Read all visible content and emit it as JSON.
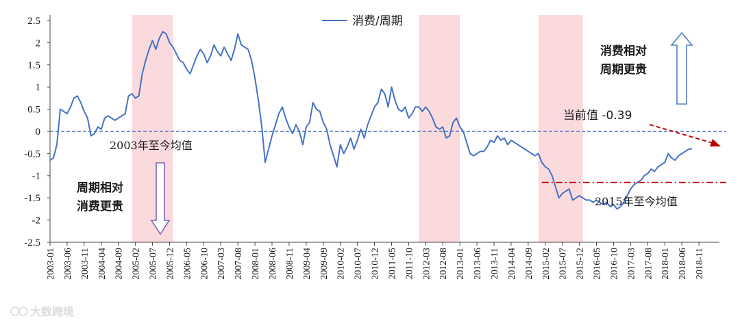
{
  "chart_data": {
    "type": "line",
    "title": "",
    "xlabel": "",
    "ylabel": "",
    "ylim": [
      -2.5,
      2.5
    ],
    "yticks": [
      "2.5",
      "2",
      "1.5",
      "1",
      "0.5",
      "0",
      "-0.5",
      "-1",
      "-1.5",
      "-2",
      "-2.5"
    ],
    "grid": false,
    "legend": {
      "position": "top-center",
      "entries": [
        "消费/周期"
      ]
    },
    "x_start": "2003-01",
    "x_tick_labels": [
      "2003-01",
      "2003-06",
      "2003-11",
      "2004-04",
      "2004-09",
      "2005-02",
      "2005-07",
      "2005-12",
      "2006-05",
      "2006-10",
      "2007-03",
      "2007-08",
      "2008-01",
      "2008-06",
      "2008-11",
      "2009-04",
      "2009-09",
      "2010-02",
      "2010-07",
      "2010-12",
      "2011-05",
      "2011-10",
      "2012-03",
      "2012-08",
      "2013-01",
      "2013-06",
      "2013-11",
      "2014-04",
      "2014-09",
      "2015-02",
      "2015-07",
      "2015-12",
      "2016-05",
      "2016-10",
      "2017-03",
      "2017-08",
      "2018-01",
      "2018-06",
      "2018-11"
    ],
    "series": [
      {
        "name": "消费/周期",
        "color": "#4472C4",
        "values": [
          -0.65,
          -0.6,
          -0.3,
          0.5,
          0.45,
          0.4,
          0.55,
          0.75,
          0.8,
          0.65,
          0.45,
          0.3,
          -0.1,
          -0.05,
          0.1,
          0.05,
          0.3,
          0.35,
          0.3,
          0.25,
          0.3,
          0.35,
          0.4,
          0.8,
          0.85,
          0.75,
          0.8,
          1.3,
          1.6,
          1.85,
          2.05,
          1.85,
          2.1,
          2.25,
          2.2,
          2.0,
          1.9,
          1.75,
          1.6,
          1.55,
          1.4,
          1.3,
          1.5,
          1.7,
          1.85,
          1.75,
          1.55,
          1.7,
          1.95,
          1.8,
          1.7,
          1.9,
          1.75,
          1.6,
          1.85,
          2.2,
          1.95,
          1.9,
          1.85,
          1.6,
          1.2,
          0.7,
          0.1,
          -0.7,
          -0.4,
          -0.1,
          0.15,
          0.4,
          0.55,
          0.3,
          0.1,
          -0.05,
          0.15,
          0.0,
          -0.3,
          0.1,
          0.2,
          0.65,
          0.5,
          0.45,
          0.2,
          0.05,
          -0.3,
          -0.55,
          -0.8,
          -0.3,
          -0.5,
          -0.35,
          -0.15,
          -0.4,
          -0.2,
          0.05,
          -0.15,
          0.15,
          0.35,
          0.55,
          0.65,
          0.95,
          0.85,
          0.55,
          1.0,
          0.7,
          0.5,
          0.45,
          0.55,
          0.3,
          0.4,
          0.55,
          0.55,
          0.45,
          0.55,
          0.45,
          0.3,
          0.1,
          0.05,
          0.1,
          -0.15,
          -0.1,
          0.2,
          0.3,
          0.1,
          0.0,
          -0.25,
          -0.5,
          -0.55,
          -0.5,
          -0.45,
          -0.45,
          -0.35,
          -0.2,
          -0.25,
          -0.1,
          -0.2,
          -0.15,
          -0.3,
          -0.2,
          -0.25,
          -0.3,
          -0.35,
          -0.4,
          -0.45,
          -0.5,
          -0.55,
          -0.5,
          -0.7,
          -0.8,
          -0.85,
          -1.0,
          -1.25,
          -1.5,
          -1.4,
          -1.35,
          -1.3,
          -1.55,
          -1.5,
          -1.45,
          -1.5,
          -1.55,
          -1.55,
          -1.6,
          -1.55,
          -1.6,
          -1.65,
          -1.6,
          -1.7,
          -1.65,
          -1.75,
          -1.7,
          -1.6,
          -1.45,
          -1.3,
          -1.2,
          -1.15,
          -1.1,
          -1.0,
          -0.95,
          -0.85,
          -0.9,
          -0.8,
          -0.75,
          -0.7,
          -0.5,
          -0.6,
          -0.65,
          -0.55,
          -0.5,
          -0.45,
          -0.4,
          -0.39
        ]
      }
    ],
    "shaded_periods": [
      {
        "start": "2005-01",
        "end": "2005-12"
      },
      {
        "start": "2012-01",
        "end": "2012-12"
      },
      {
        "start": "2014-12",
        "end": "2015-12"
      }
    ],
    "reference_lines": [
      {
        "value": 0,
        "label": "2003年至今均值",
        "color": "#4472C4",
        "style": "dashed",
        "from": "2003-01"
      },
      {
        "value": -1.15,
        "label": "2015年至今均值",
        "color": "#C00000",
        "style": "dashdot",
        "from": "2015-01"
      }
    ],
    "annotations": {
      "current_value": "当前值 -0.39",
      "up_arrow_text_line1": "消费相对",
      "up_arrow_text_line2": "周期更贵",
      "down_arrow_text_line1": "周期相对",
      "down_arrow_text_line2": "消费更贵"
    },
    "colors": {
      "series": "#4472C4",
      "shade": "#FADADD",
      "mean_2015": "#C00000",
      "up_arrow": "#4F81BD",
      "down_arrow": "#7B68B5"
    }
  },
  "watermark": {
    "text": "大数跨境"
  }
}
